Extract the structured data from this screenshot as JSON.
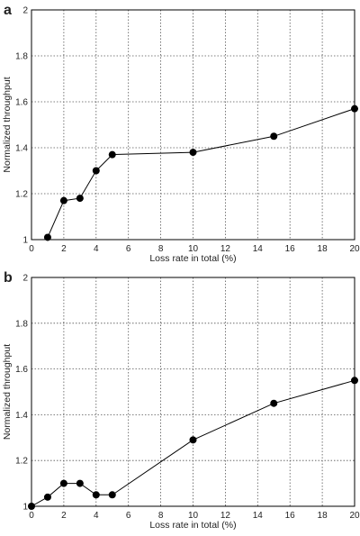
{
  "chart_data": [
    {
      "panel": "a",
      "type": "line",
      "xlabel": "Loss rate in total (%)",
      "ylabel": "Normalized throughput",
      "xlim": [
        0,
        20
      ],
      "ylim": [
        1,
        2
      ],
      "xticks": [
        0,
        2,
        4,
        6,
        8,
        10,
        12,
        14,
        16,
        18,
        20
      ],
      "yticks": [
        1,
        1.2,
        1.4,
        1.6,
        1.8,
        2
      ],
      "ytick_labels": [
        "1",
        "1.2",
        "1.4",
        "1.6",
        "1.8",
        "2"
      ],
      "grid": true,
      "series": [
        {
          "x": [
            1,
            2,
            3,
            4,
            5,
            10,
            15,
            20
          ],
          "y": [
            1.01,
            1.17,
            1.18,
            1.3,
            1.37,
            1.38,
            1.45,
            1.57
          ]
        }
      ]
    },
    {
      "panel": "b",
      "type": "line",
      "xlabel": "Loss rate in total (%)",
      "ylabel": "Normalized throughput",
      "xlim": [
        0,
        20
      ],
      "ylim": [
        1,
        2
      ],
      "xticks": [
        0,
        2,
        4,
        6,
        8,
        10,
        12,
        14,
        16,
        18,
        20
      ],
      "yticks": [
        1,
        1.2,
        1.4,
        1.6,
        1.8,
        2
      ],
      "ytick_labels": [
        "1",
        "1.2",
        "1.4",
        "1.6",
        "1.8",
        "2"
      ],
      "grid": true,
      "series": [
        {
          "x": [
            0,
            1,
            2,
            3,
            4,
            5,
            10,
            15,
            20
          ],
          "y": [
            1.0,
            1.04,
            1.1,
            1.1,
            1.05,
            1.05,
            1.29,
            1.45,
            1.55
          ]
        }
      ]
    }
  ]
}
